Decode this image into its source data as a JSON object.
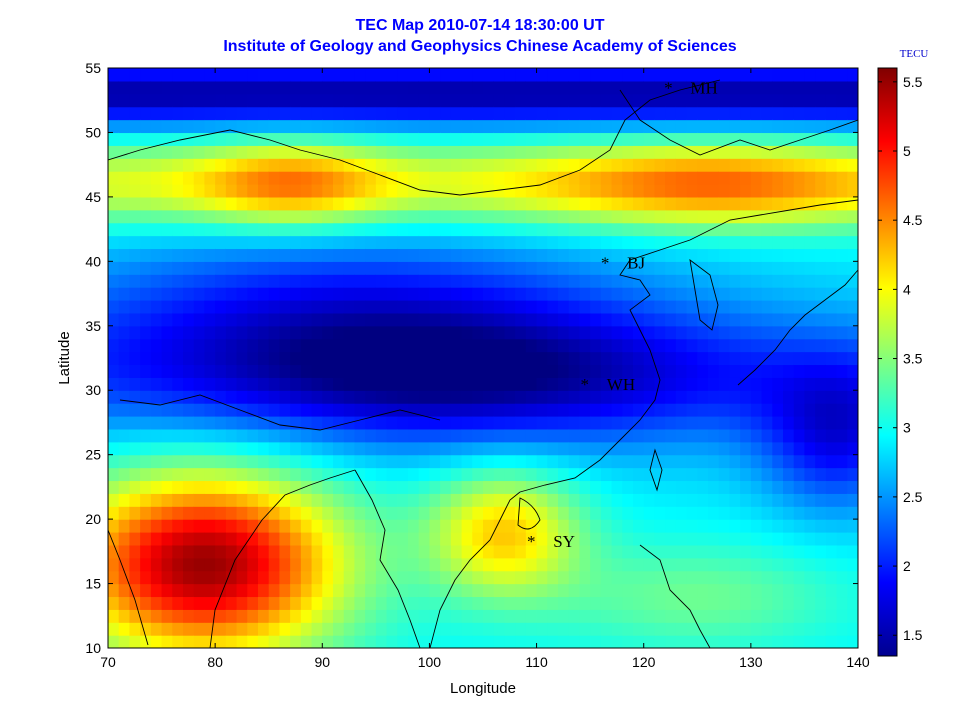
{
  "title": {
    "line1": "TEC Map 2010-07-14 18:30:00 UT",
    "line2": "Institute of Geology and Geophysics Chinese Academy of Sciences"
  },
  "chart_data": {
    "type": "heatmap",
    "xlabel": "Longitude",
    "ylabel": "Latitude",
    "xlim": [
      70,
      140
    ],
    "ylim": [
      10,
      55
    ],
    "xticks": [
      70,
      80,
      90,
      100,
      110,
      120,
      130,
      140
    ],
    "yticks": [
      10,
      15,
      20,
      25,
      30,
      35,
      40,
      45,
      50,
      55
    ],
    "colorbar": {
      "label": "TECU",
      "range": [
        1.35,
        5.6
      ],
      "ticks": [
        "1.5",
        "2",
        "2.5",
        "3",
        "3.5",
        "4",
        "4.5",
        "5",
        "5.5"
      ],
      "colormap": "jet"
    },
    "stations": [
      {
        "name": "MH",
        "lon": 122.3,
        "lat": 53.5
      },
      {
        "name": "BJ",
        "lon": 116.4,
        "lat": 39.9
      },
      {
        "name": "WH",
        "lon": 114.5,
        "lat": 30.5
      },
      {
        "name": "SY",
        "lon": 109.5,
        "lat": 18.3
      }
    ],
    "tec_features": [
      {
        "feature": "background",
        "value": 2.9
      },
      {
        "feature": "northern-low-band",
        "lat": 53,
        "value": 1.6
      },
      {
        "feature": "northern-high-band",
        "lat": 46,
        "value": 4.9
      },
      {
        "feature": "equatorial-trough",
        "lat": 31,
        "value": 1.4
      },
      {
        "feature": "southwest-crest-peak",
        "lon": 79,
        "lat": 16.5,
        "value": 5.5
      },
      {
        "feature": "east-trough",
        "lon": 138,
        "lat": 26,
        "value": 2.0
      }
    ]
  }
}
